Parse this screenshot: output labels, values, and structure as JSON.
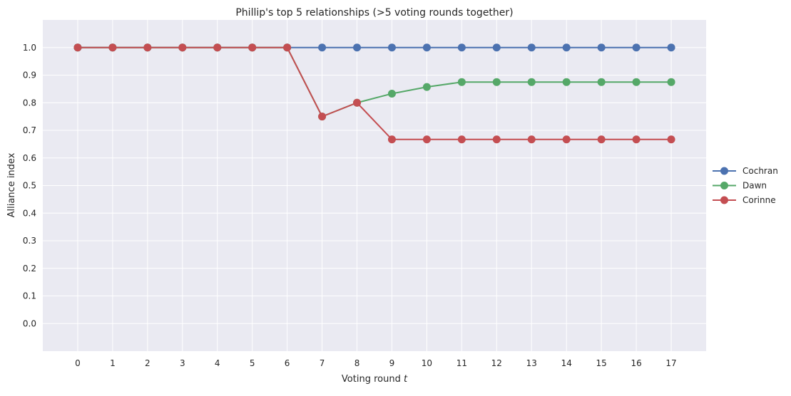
{
  "chart_data": {
    "type": "line",
    "title": "Phillip's top 5 relationships (>5 voting rounds together)",
    "xlabel": "Voting round",
    "xlabel_var": "t",
    "ylabel": "Alliance index",
    "x": [
      0,
      1,
      2,
      3,
      4,
      5,
      6,
      7,
      8,
      9,
      10,
      11,
      12,
      13,
      14,
      15,
      16,
      17
    ],
    "xlim": [
      -1,
      18
    ],
    "ylim": [
      -0.1,
      1.1
    ],
    "yticks": [
      0.0,
      0.1,
      0.2,
      0.3,
      0.4,
      0.5,
      0.6,
      0.7,
      0.8,
      0.9,
      1.0
    ],
    "grid": true,
    "legend_position": "right-outside",
    "colors": {
      "background": "#EAEAF2",
      "grid": "#FFFFFF"
    },
    "series": [
      {
        "name": "Cochran",
        "color": "#4C72B0",
        "values": [
          1.0,
          1.0,
          1.0,
          1.0,
          1.0,
          1.0,
          1.0,
          1.0,
          1.0,
          1.0,
          1.0,
          1.0,
          1.0,
          1.0,
          1.0,
          1.0,
          1.0,
          1.0
        ]
      },
      {
        "name": "Dawn",
        "color": "#55A868",
        "values": [
          1.0,
          1.0,
          1.0,
          1.0,
          1.0,
          1.0,
          1.0,
          0.75,
          0.8,
          0.833,
          0.857,
          0.875,
          0.875,
          0.875,
          0.875,
          0.875,
          0.875,
          0.875
        ]
      },
      {
        "name": "Corinne",
        "color": "#C44E52",
        "values": [
          1.0,
          1.0,
          1.0,
          1.0,
          1.0,
          1.0,
          1.0,
          0.75,
          0.8,
          0.667,
          0.667,
          0.667,
          0.667,
          0.667,
          0.667,
          0.667,
          0.667,
          0.667
        ]
      }
    ]
  }
}
